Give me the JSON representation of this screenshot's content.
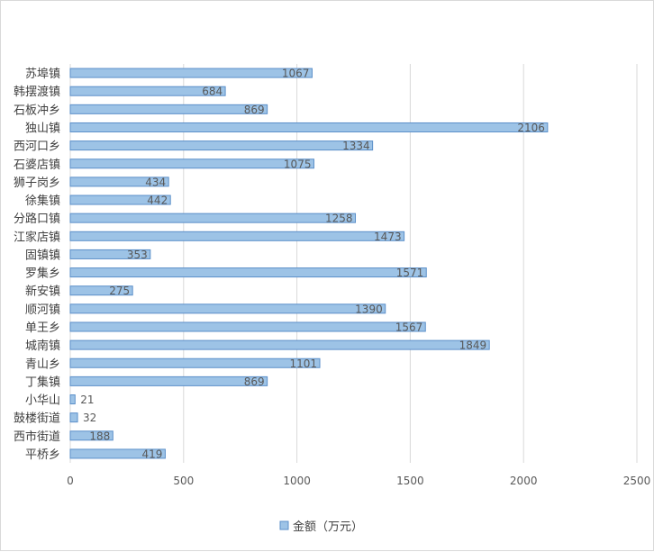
{
  "chart_data": {
    "type": "bar",
    "orientation": "horizontal",
    "categories": [
      "苏埠镇",
      "韩摆渡镇",
      "石板冲乡",
      "独山镇",
      "西河口乡",
      "石婆店镇",
      "狮子岗乡",
      "徐集镇",
      "分路口镇",
      "江家店镇",
      "固镇镇",
      "罗集乡",
      "新安镇",
      "顺河镇",
      "单王乡",
      "城南镇",
      "青山乡",
      "丁集镇",
      "小华山",
      "鼓楼街道",
      "西市街道",
      "平桥乡"
    ],
    "series": [
      {
        "name": "金额（万元）",
        "values": [
          1067,
          684,
          869,
          2106,
          1334,
          1075,
          434,
          442,
          1258,
          1473,
          353,
          1571,
          275,
          1390,
          1567,
          1849,
          1101,
          869,
          21,
          32,
          188,
          419
        ]
      }
    ],
    "xlim": [
      0,
      2500
    ],
    "ticks": [
      "0",
      "500",
      "1000",
      "1500",
      "2000",
      "2500"
    ],
    "tick_values": [
      0,
      500,
      1000,
      1500,
      2000,
      2500
    ],
    "grid": "vertical",
    "legend_position": "bottom",
    "colors": {
      "bar_fill": "#9dc3e6",
      "bar_stroke": "#5b8fc9",
      "grid": "#d9d9d9"
    }
  }
}
